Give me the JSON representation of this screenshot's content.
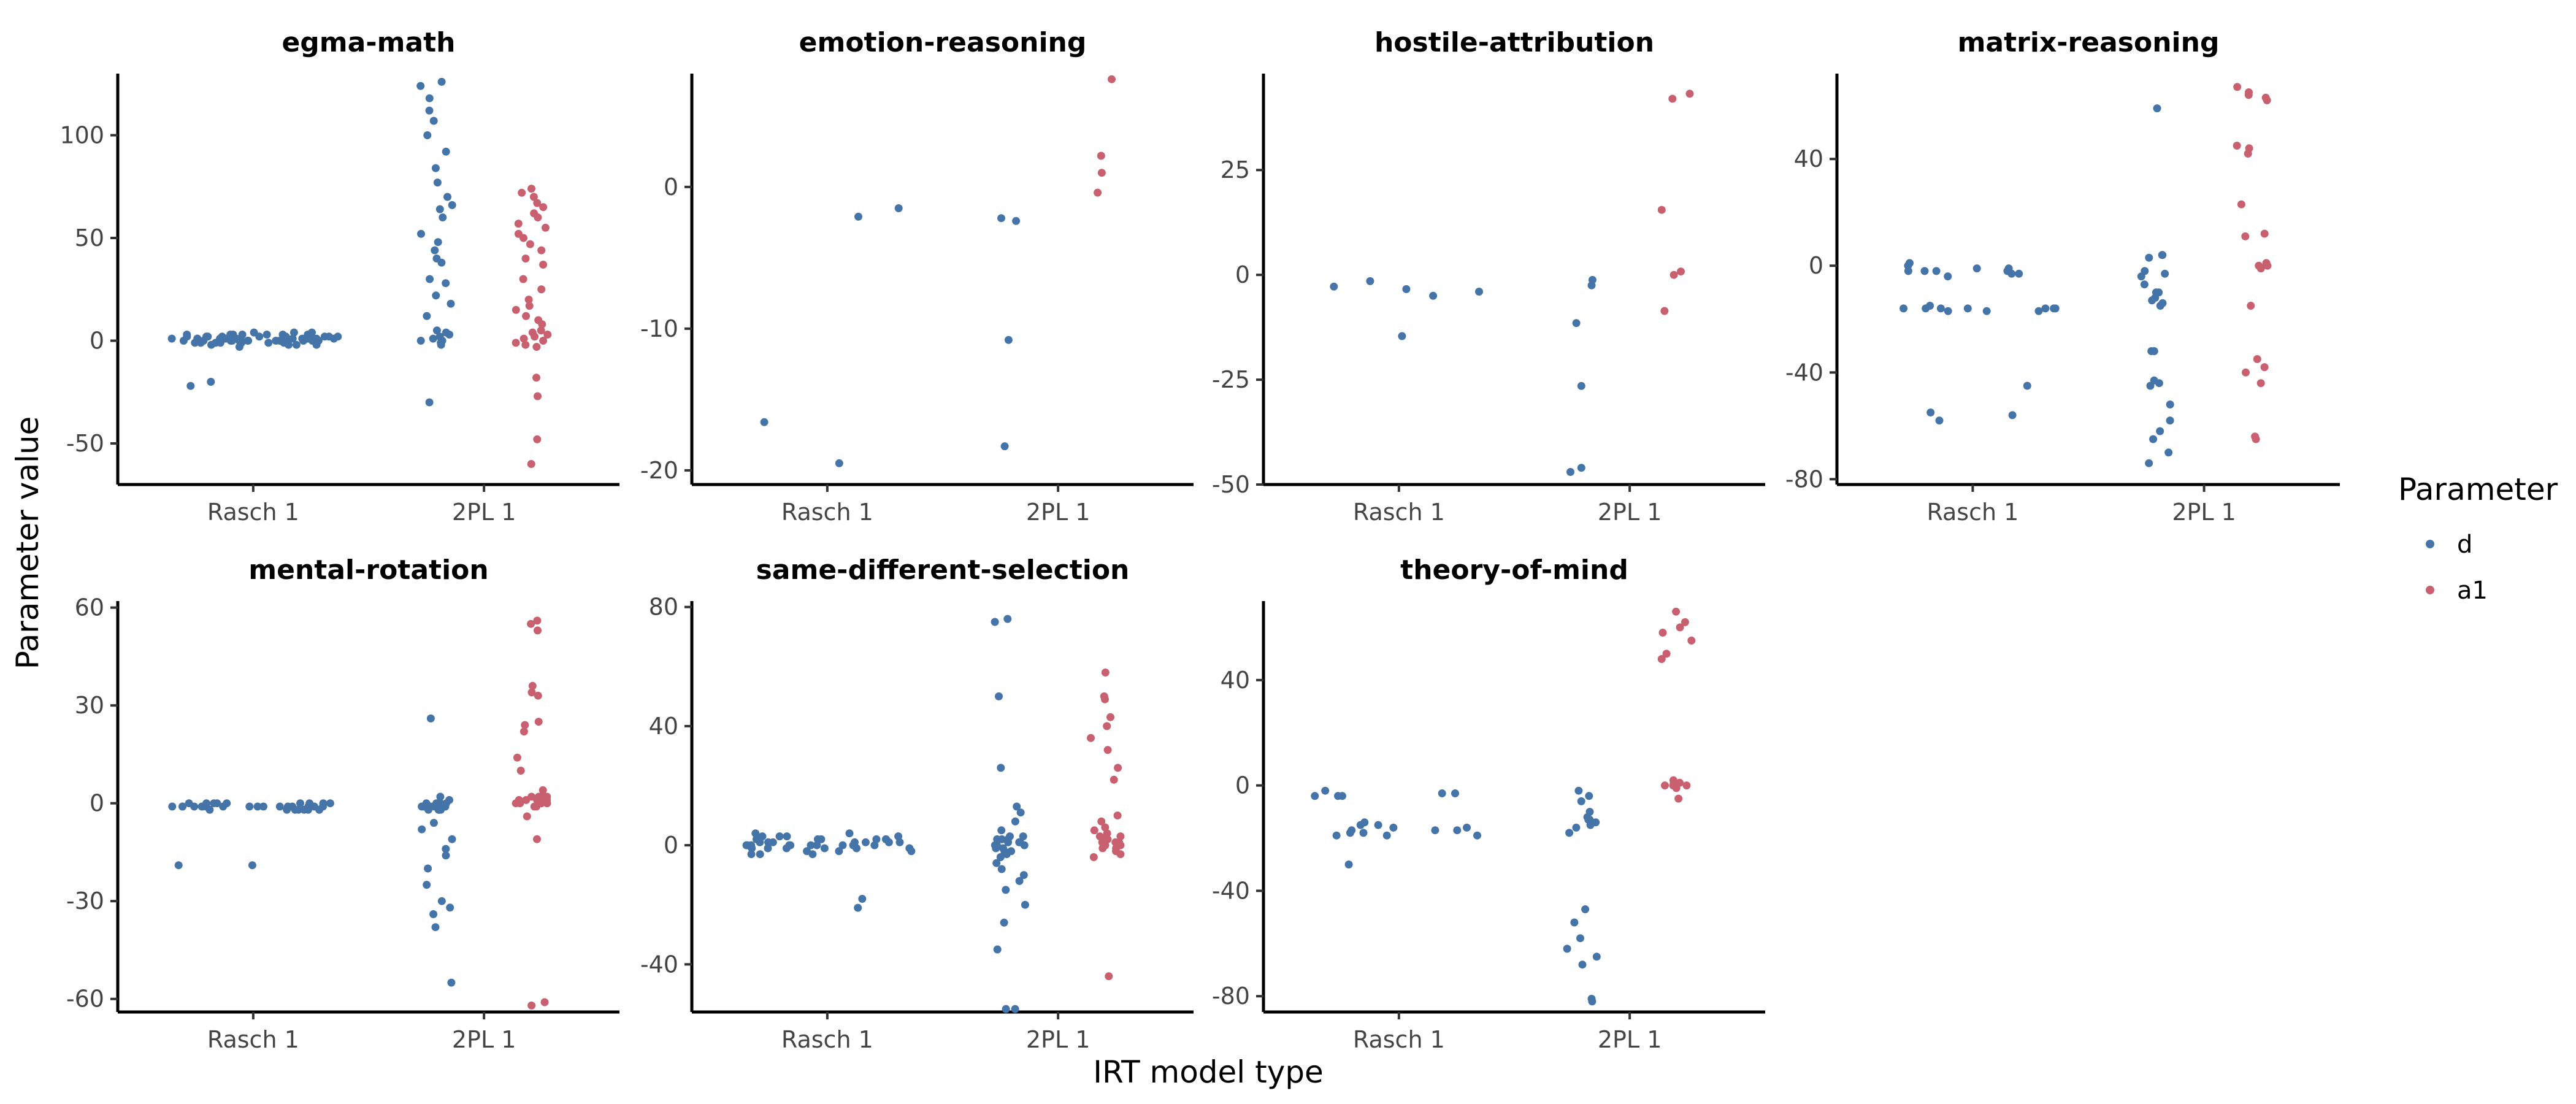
{
  "chart_data": {
    "type": "scatter",
    "xlabel": "IRT model type",
    "ylabel": "Parameter value",
    "legend": {
      "title": "Parameter",
      "placement": "right",
      "entries": [
        {
          "name": "d",
          "color": "#4575a8"
        },
        {
          "name": "a1",
          "color": "#c9606f"
        }
      ]
    },
    "categories": [
      "Rasch 1",
      "2PL 1"
    ],
    "grid": false,
    "panels": [
      {
        "title": "egma-math",
        "ylim": [
          -70,
          130
        ],
        "yticks": [
          -50,
          0,
          50,
          100
        ],
        "points": [
          {
            "x": "Rasch 1",
            "p": "d",
            "values": [
              0,
              1,
              0,
              2,
              -1,
              3,
              1,
              0,
              -2,
              2,
              4,
              1,
              0,
              -1,
              3,
              2,
              0,
              1,
              -2,
              4,
              2,
              0,
              1,
              3,
              -1,
              0,
              2,
              1,
              -3,
              0,
              3,
              1,
              -1,
              2,
              0,
              4,
              1,
              0,
              -2,
              2,
              3,
              0,
              1,
              -1,
              2,
              0,
              1,
              3,
              -1,
              0,
              2,
              1,
              0,
              -2,
              3,
              1,
              0,
              2,
              -1,
              1,
              -20,
              -22
            ]
          },
          {
            "x": "2PL 1",
            "p": "d",
            "values": [
              126,
              124,
              118,
              112,
              107,
              100,
              92,
              84,
              77,
              70,
              64,
              60,
              52,
              48,
              44,
              40,
              38,
              30,
              22,
              18,
              12,
              5,
              3,
              2,
              0,
              -1,
              -2,
              1,
              4,
              0,
              -30,
              28,
              66
            ]
          },
          {
            "x": "2PL 1",
            "p": "a1",
            "values": [
              74,
              72,
              70,
              67,
              65,
              62,
              60,
              57,
              55,
              52,
              50,
              47,
              44,
              40,
              37,
              30,
              25,
              20,
              17,
              15,
              12,
              10,
              8,
              5,
              3,
              2,
              0,
              -2,
              -1,
              1,
              4,
              -18,
              -27,
              -48,
              -60,
              -3
            ]
          }
        ]
      },
      {
        "title": "emotion-reasoning",
        "ylim": [
          -21,
          8
        ],
        "yticks": [
          -20,
          -10,
          0
        ],
        "points": [
          {
            "x": "Rasch 1",
            "p": "d",
            "values": [
              -1.5,
              -2.1,
              -16.6,
              -19.5
            ]
          },
          {
            "x": "2PL 1",
            "p": "d",
            "values": [
              -2.2,
              -2.4,
              -10.8,
              -18.3
            ]
          },
          {
            "x": "2PL 1",
            "p": "a1",
            "values": [
              7.6,
              2.2,
              1.0,
              -0.4
            ]
          }
        ]
      },
      {
        "title": "hostile-attribution",
        "ylim": [
          -50,
          48
        ],
        "yticks": [
          -50,
          -25,
          0,
          25
        ],
        "points": [
          {
            "x": "Rasch 1",
            "p": "d",
            "values": [
              -1.5,
              -2.8,
              -3.4,
              -4.0,
              -5.0,
              -14.6
            ]
          },
          {
            "x": "2PL 1",
            "p": "d",
            "values": [
              -1.2,
              -2.5,
              -11.5,
              -26.5,
              -46.0,
              -47.0
            ]
          },
          {
            "x": "2PL 1",
            "p": "a1",
            "values": [
              43.2,
              42.0,
              15.5,
              0.8,
              0,
              -8.6
            ]
          }
        ]
      },
      {
        "title": "matrix-reasoning",
        "ylim": [
          -82,
          72
        ],
        "yticks": [
          -80,
          -40,
          0,
          40
        ],
        "points": [
          {
            "x": "Rasch 1",
            "p": "d",
            "values": [
              1,
              0,
              -2,
              -3,
              -1,
              -2,
              -4,
              -2,
              -16,
              -16,
              -16,
              -16,
              -17,
              -17,
              -16,
              -16,
              -15,
              -17,
              -16,
              -55,
              -56,
              -58,
              -45,
              -2,
              -1,
              -3
            ]
          },
          {
            "x": "2PL 1",
            "p": "d",
            "values": [
              59,
              4,
              4,
              3,
              -2,
              -3,
              -4,
              -7,
              -10,
              -12,
              -13,
              -14,
              -15,
              -10,
              -32,
              -32,
              -43,
              -44,
              -45,
              -52,
              -58,
              -62,
              -65,
              -70,
              -74
            ]
          },
          {
            "x": "2PL 1",
            "p": "a1",
            "values": [
              67,
              65,
              64,
              63,
              62,
              45,
              44,
              42,
              23,
              12,
              11,
              1,
              0,
              0,
              -1,
              -15,
              -35,
              -38,
              -40,
              -44,
              -64,
              -65
            ]
          }
        ]
      },
      {
        "title": "mental-rotation",
        "ylim": [
          -64,
          62
        ],
        "yticks": [
          -60,
          -30,
          0,
          30,
          60
        ],
        "points": [
          {
            "x": "Rasch 1",
            "p": "d",
            "values": [
              -1,
              -1,
              0,
              -2,
              -1,
              -1,
              0,
              -2,
              -1,
              0,
              -1,
              -2,
              -1,
              0,
              -1,
              -1,
              -2,
              0,
              -1,
              -1,
              0,
              -2,
              -1,
              -1,
              0,
              -1,
              -2,
              0,
              -1,
              -1,
              -2,
              0,
              -1,
              -19,
              -19
            ]
          },
          {
            "x": "2PL 1",
            "p": "d",
            "values": [
              26,
              2,
              1,
              0,
              -1,
              -2,
              -1,
              0,
              -1,
              -2,
              -1,
              0,
              -1,
              -2,
              0,
              -1,
              -1,
              -2,
              0,
              -1,
              -6,
              -8,
              -11,
              -14,
              -16,
              -20,
              -25,
              -30,
              -32,
              -34,
              -38,
              -55
            ]
          },
          {
            "x": "2PL 1",
            "p": "a1",
            "values": [
              56,
              55,
              53,
              36,
              34,
              33,
              25,
              24,
              22,
              14,
              10,
              4,
              2,
              1,
              0,
              1,
              2,
              0,
              -1,
              1,
              0,
              2,
              1,
              0,
              -1,
              1,
              0,
              2,
              -4,
              -11,
              -62,
              -61
            ]
          }
        ]
      },
      {
        "title": "same-different-selection",
        "ylim": [
          -56,
          82
        ],
        "yticks": [
          -40,
          0,
          40,
          80
        ],
        "points": [
          {
            "x": "Rasch 1",
            "p": "d",
            "values": [
              2,
              0,
              -1,
              3,
              1,
              -2,
              0,
              2,
              -3,
              1,
              0,
              4,
              -1,
              2,
              0,
              -2,
              3,
              1,
              -1,
              0,
              2,
              -3,
              1,
              0,
              3,
              -1,
              2,
              0,
              -2,
              1,
              4,
              0,
              -1,
              2,
              1,
              -3,
              0,
              2,
              1,
              -1,
              3,
              0,
              -18,
              -21
            ]
          },
          {
            "x": "2PL 1",
            "p": "d",
            "values": [
              76,
              75,
              50,
              26,
              13,
              11,
              8,
              5,
              3,
              2,
              1,
              0,
              -1,
              -2,
              -3,
              2,
              1,
              0,
              -1,
              3,
              2,
              -2,
              0,
              1,
              -4,
              -6,
              -8,
              -10,
              -12,
              -15,
              -20,
              -26,
              -35,
              -55,
              -55
            ]
          },
          {
            "x": "2PL 1",
            "p": "a1",
            "values": [
              58,
              50,
              49,
              43,
              40,
              36,
              32,
              26,
              22,
              10,
              8,
              6,
              5,
              4,
              3,
              2,
              1,
              0,
              -1,
              -2,
              3,
              2,
              1,
              0,
              -1,
              2,
              1,
              0,
              -3,
              -4,
              -44
            ]
          }
        ]
      },
      {
        "title": "theory-of-mind",
        "ylim": [
          -86,
          70
        ],
        "yticks": [
          -80,
          -40,
          0,
          40
        ],
        "points": [
          {
            "x": "Rasch 1",
            "p": "d",
            "values": [
              -17,
              -18,
              -16,
              -19,
              -17,
              -15,
              -2,
              -4,
              -3,
              -4,
              -4,
              -3,
              -14,
              -16,
              -18,
              -19,
              -15,
              -17,
              -19,
              -30
            ]
          },
          {
            "x": "2PL 1",
            "p": "d",
            "values": [
              -2,
              -4,
              -6,
              -10,
              -12,
              -13,
              -14,
              -15,
              -16,
              -13,
              -18,
              -47,
              -52,
              -58,
              -62,
              -65,
              -68,
              -81,
              -82
            ]
          },
          {
            "x": "2PL 1",
            "p": "a1",
            "values": [
              66,
              62,
              60,
              58,
              55,
              50,
              48,
              2,
              1,
              0,
              0,
              -1,
              1,
              0,
              -5
            ]
          }
        ]
      }
    ]
  }
}
